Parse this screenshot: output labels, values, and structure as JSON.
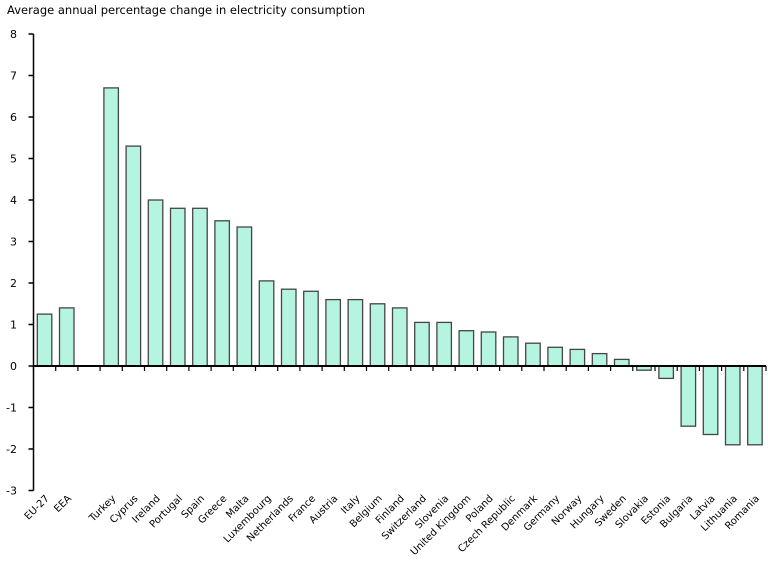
{
  "title": "Average annual percentage change in electricity consumption",
  "colors": {
    "background": "#ffffff",
    "bar_fill": "#b5f4e0",
    "bar_border": "#454545",
    "axis": "#000000",
    "text": "#000000"
  },
  "chart_data": {
    "type": "bar",
    "title": "Average annual percentage change in electricity consumption",
    "xlabel": "",
    "ylabel": "",
    "ylim": [
      -3,
      8
    ],
    "ytick_step": 1,
    "ytick_labels": [
      "8",
      "7",
      "6",
      "5",
      "4",
      "3",
      "2",
      "1",
      "0",
      "-1",
      "-2",
      "-3"
    ],
    "grid": false,
    "legend": null,
    "separator_after_index": 1,
    "separator_slots": 1,
    "categories": [
      "EU-27",
      "EEA",
      "Turkey",
      "Cyprus",
      "Ireland",
      "Portugal",
      "Spain",
      "Greece",
      "Malta",
      "Luxembourg",
      "Netherlands",
      "France",
      "Austria",
      "Italy",
      "Belgium",
      "Finland",
      "Switzerland",
      "Slovenia",
      "United Kingdom",
      "Poland",
      "Czech Republic",
      "Denmark",
      "Germany",
      "Norway",
      "Hungary",
      "Sweden",
      "Slovakia",
      "Estonia",
      "Bulgaria",
      "Latvia",
      "Lithuania",
      "Romania"
    ],
    "values": [
      1.25,
      1.4,
      6.7,
      5.3,
      4.0,
      3.8,
      3.8,
      3.5,
      3.35,
      2.05,
      1.85,
      1.8,
      1.6,
      1.6,
      1.5,
      1.4,
      1.05,
      1.05,
      0.85,
      0.82,
      0.7,
      0.55,
      0.45,
      0.4,
      0.3,
      0.16,
      -0.1,
      -0.3,
      -1.45,
      -1.65,
      -1.9,
      -1.9
    ]
  }
}
